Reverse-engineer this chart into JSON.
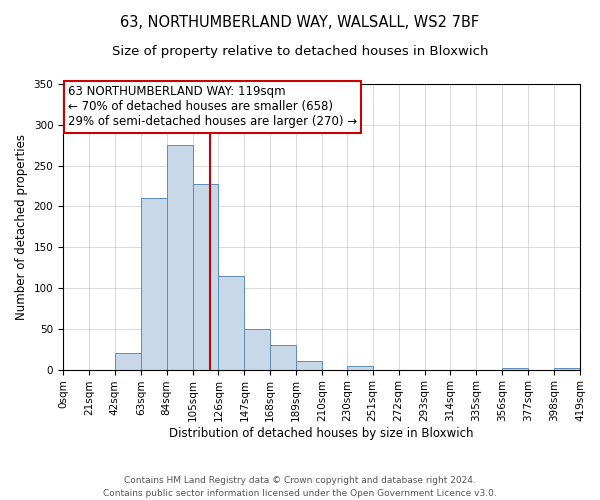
{
  "title": "63, NORTHUMBERLAND WAY, WALSALL, WS2 7BF",
  "subtitle": "Size of property relative to detached houses in Bloxwich",
  "xlabel": "Distribution of detached houses by size in Bloxwich",
  "ylabel": "Number of detached properties",
  "bin_edges": [
    0,
    21,
    42,
    63,
    84,
    105,
    126,
    147,
    168,
    189,
    210,
    230,
    251,
    272,
    293,
    314,
    335,
    356,
    377,
    398,
    419
  ],
  "bin_labels": [
    "0sqm",
    "21sqm",
    "42sqm",
    "63sqm",
    "84sqm",
    "105sqm",
    "126sqm",
    "147sqm",
    "168sqm",
    "189sqm",
    "210sqm",
    "230sqm",
    "251sqm",
    "272sqm",
    "293sqm",
    "314sqm",
    "335sqm",
    "356sqm",
    "377sqm",
    "398sqm",
    "419sqm"
  ],
  "bar_heights": [
    0,
    0,
    20,
    210,
    275,
    228,
    115,
    50,
    30,
    10,
    0,
    5,
    0,
    0,
    0,
    0,
    0,
    2,
    0,
    2
  ],
  "bar_color": "#c8d8e8",
  "bar_edge_color": "#5b8db8",
  "vline_x": 119,
  "vline_color": "#cc0000",
  "ylim": [
    0,
    350
  ],
  "yticks": [
    0,
    50,
    100,
    150,
    200,
    250,
    300,
    350
  ],
  "annotation_title": "63 NORTHUMBERLAND WAY: 119sqm",
  "annotation_line1": "← 70% of detached houses are smaller (658)",
  "annotation_line2": "29% of semi-detached houses are larger (270) →",
  "annotation_box_color": "#cc0000",
  "footer_line1": "Contains HM Land Registry data © Crown copyright and database right 2024.",
  "footer_line2": "Contains public sector information licensed under the Open Government Licence v3.0.",
  "title_fontsize": 10.5,
  "subtitle_fontsize": 9.5,
  "axis_label_fontsize": 8.5,
  "tick_fontsize": 7.5,
  "annotation_fontsize": 8.5,
  "footer_fontsize": 6.5
}
